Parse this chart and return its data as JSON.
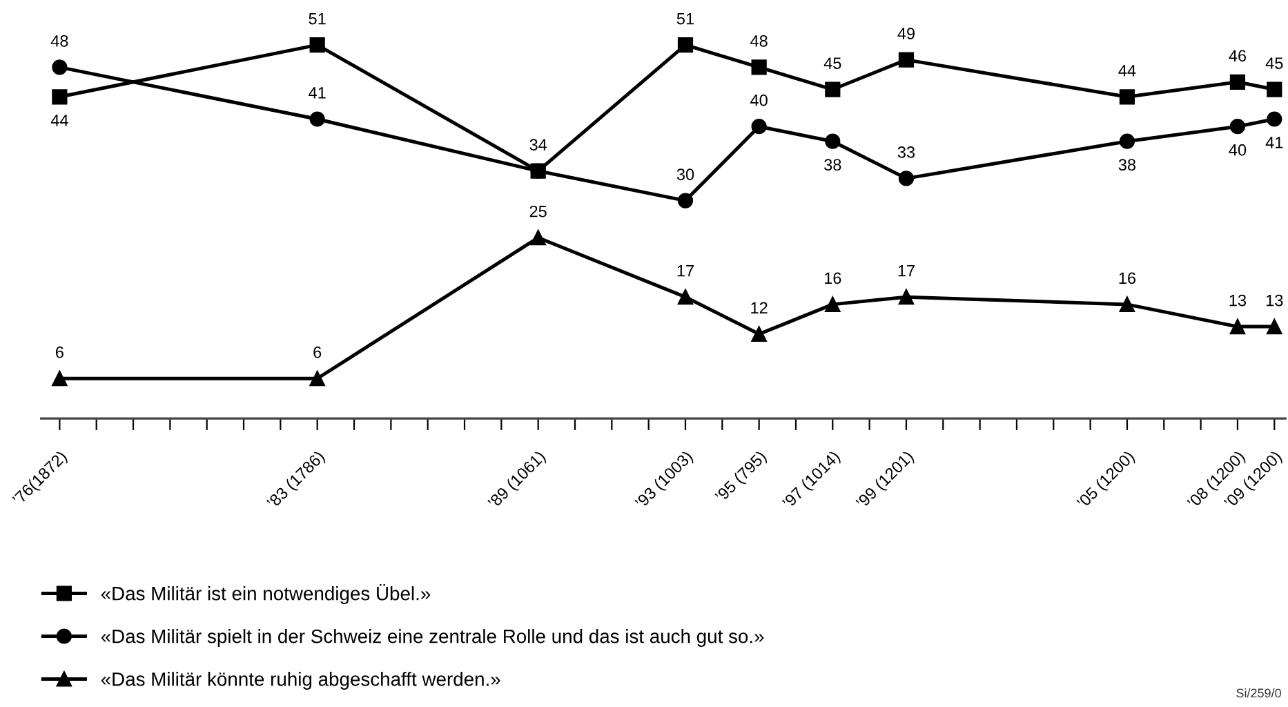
{
  "chart_data": {
    "type": "line",
    "categories": [
      "’76(1872)",
      null,
      null,
      null,
      null,
      null,
      null,
      "’83 (1786)",
      null,
      null,
      null,
      null,
      null,
      "’89 (1061)",
      null,
      null,
      null,
      "’93 (1003)",
      null,
      "’95 (795)",
      null,
      "’97 (1014)",
      null,
      "’99 (1201)",
      null,
      null,
      null,
      null,
      null,
      "’05 (1200)",
      null,
      null,
      "’08 (1200)",
      "’09 (1200)"
    ],
    "tick_labels": "x",
    "grid": false,
    "legend": "bottom",
    "line_style": "solid",
    "series": [
      {
        "name": "«Das Militär ist ein notwendiges Übel.»",
        "color": "#000000",
        "marker": "square",
        "values": [
          44,
          null,
          null,
          null,
          null,
          null,
          null,
          51,
          null,
          null,
          null,
          null,
          null,
          34,
          null,
          null,
          null,
          51,
          null,
          48,
          null,
          45,
          null,
          49,
          null,
          null,
          null,
          null,
          null,
          44,
          null,
          null,
          46,
          45
        ],
        "value_labels": [
          "44",
          null,
          null,
          null,
          null,
          null,
          null,
          "51",
          null,
          null,
          null,
          null,
          null,
          "34",
          null,
          null,
          null,
          "51",
          null,
          "48",
          null,
          "45",
          null,
          "49",
          null,
          null,
          null,
          null,
          null,
          "44",
          null,
          null,
          "46",
          "45"
        ]
      },
      {
        "name": "«Das Militär spielt in der Schweiz eine zentrale Rolle und das ist auch gut so.»",
        "color": "#000000",
        "marker": "circle",
        "values": [
          48,
          null,
          null,
          null,
          null,
          null,
          null,
          41,
          null,
          null,
          null,
          null,
          null,
          34,
          null,
          null,
          null,
          30,
          null,
          40,
          null,
          38,
          null,
          33,
          null,
          null,
          null,
          null,
          null,
          38,
          null,
          null,
          40,
          41
        ],
        "value_labels": [
          "48",
          null,
          null,
          null,
          null,
          null,
          null,
          "41",
          null,
          null,
          null,
          null,
          null,
          null,
          null,
          null,
          null,
          "30",
          null,
          "40",
          null,
          "38",
          null,
          "33",
          null,
          null,
          null,
          null,
          null,
          "38",
          null,
          null,
          "40",
          "41"
        ]
      },
      {
        "name": "«Das Militär könnte ruhig abgeschafft werden.»",
        "color": "#000000",
        "marker": "triangle",
        "values": [
          6,
          null,
          null,
          null,
          null,
          null,
          null,
          6,
          null,
          null,
          null,
          null,
          null,
          25,
          null,
          null,
          null,
          17,
          null,
          12,
          null,
          16,
          null,
          17,
          null,
          null,
          null,
          null,
          null,
          16,
          null,
          null,
          13,
          13
        ],
        "value_labels": [
          "6",
          null,
          null,
          null,
          null,
          null,
          null,
          "6",
          null,
          null,
          null,
          null,
          null,
          "25",
          null,
          null,
          null,
          "17",
          null,
          "12",
          null,
          "16",
          null,
          "17",
          null,
          null,
          null,
          null,
          null,
          "16",
          null,
          null,
          "13",
          "13"
        ]
      }
    ],
    "annotations": [
      "Si/259/0"
    ]
  }
}
